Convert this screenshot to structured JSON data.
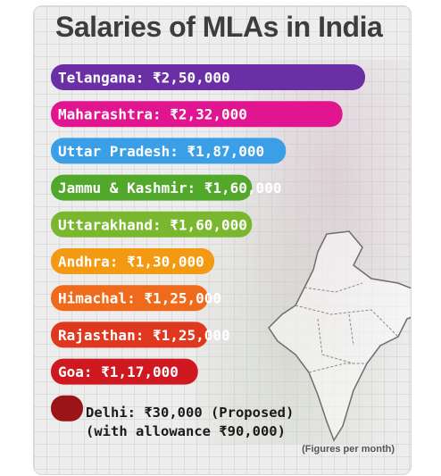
{
  "title": "Salaries of MLAs in India",
  "footnote": "(Figures per month)",
  "chart_data": {
    "type": "bar",
    "orientation": "horizontal",
    "title": "Salaries of MLAs in India",
    "categories": [
      "Telangana",
      "Maharashtra",
      "Uttar Pradesh",
      "Jammu & Kashmir",
      "Uttarakhand",
      "Andhra",
      "Himachal",
      "Rajasthan",
      "Goa",
      "Delhi"
    ],
    "values": [
      250000,
      232000,
      187000,
      160000,
      160000,
      130000,
      125000,
      125000,
      117000,
      30000
    ],
    "labels": [
      "Telangana: ₹2,50,000",
      "Maharashtra: ₹2,32,000",
      "Uttar Pradesh: ₹1,87,000",
      "Jammu & Kashmir: ₹1,60,000",
      "Uttarakhand: ₹1,60,000",
      "Andhra: ₹1,30,000",
      "Himachal: ₹1,25,000",
      "Rajasthan: ₹1,25,000",
      "Goa: ₹1,17,000"
    ],
    "delhi_note": [
      "Delhi: ₹30,000 (Proposed)",
      "(with allowance ₹90,000)"
    ],
    "colors": [
      "#6a2fa5",
      "#e0158f",
      "#3a9fe6",
      "#52a82b",
      "#79b82e",
      "#f39a12",
      "#ef6a1a",
      "#e0381f",
      "#d01820",
      "#9a1418"
    ],
    "unit": "Figures per month"
  }
}
